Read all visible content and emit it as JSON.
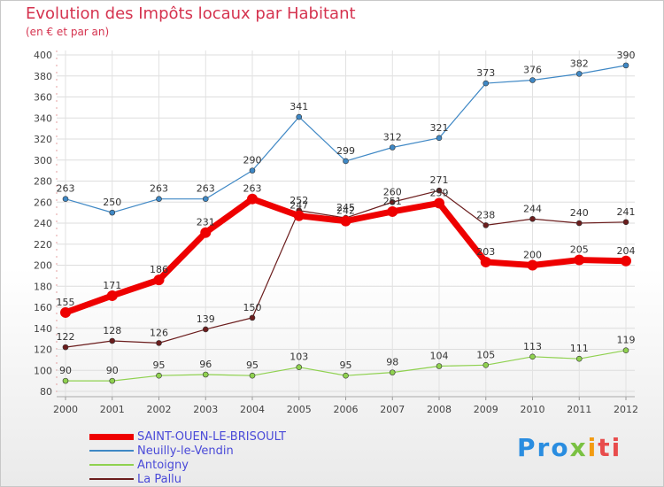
{
  "chart_data": {
    "type": "line",
    "title": "Evolution des Impôts locaux par Habitant",
    "subtitle": "(en € et par an)",
    "x": [
      "2000",
      "2001",
      "2002",
      "2003",
      "2004",
      "2005",
      "2006",
      "2007",
      "2008",
      "2009",
      "2010",
      "2011",
      "2012"
    ],
    "ylim": [
      80,
      400
    ],
    "yticks": [
      80,
      100,
      120,
      140,
      160,
      180,
      200,
      220,
      240,
      260,
      280,
      300,
      320,
      340,
      360,
      380,
      400
    ],
    "grid": true,
    "legend_position": "bottom-left",
    "series": [
      {
        "name": "SAINT-OUEN-LE-BRISOULT",
        "color": "#ee0000",
        "values": [
          155,
          171,
          186,
          231,
          263,
          247,
          242,
          251,
          259,
          203,
          200,
          205,
          204
        ]
      },
      {
        "name": "Neuilly-le-Vendin",
        "color": "#3f88c5",
        "values": [
          263,
          250,
          263,
          263,
          290,
          341,
          299,
          312,
          321,
          373,
          376,
          382,
          390
        ]
      },
      {
        "name": "Antoigny",
        "color": "#8fd14f",
        "values": [
          90,
          90,
          95,
          96,
          95,
          103,
          95,
          98,
          104,
          105,
          113,
          111,
          119
        ]
      },
      {
        "name": "La Pallu",
        "color": "#6b1d1d",
        "values": [
          122,
          128,
          126,
          139,
          150,
          252,
          245,
          260,
          271,
          238,
          244,
          240,
          241
        ]
      }
    ]
  },
  "logo": {
    "text": "Proxiti"
  }
}
